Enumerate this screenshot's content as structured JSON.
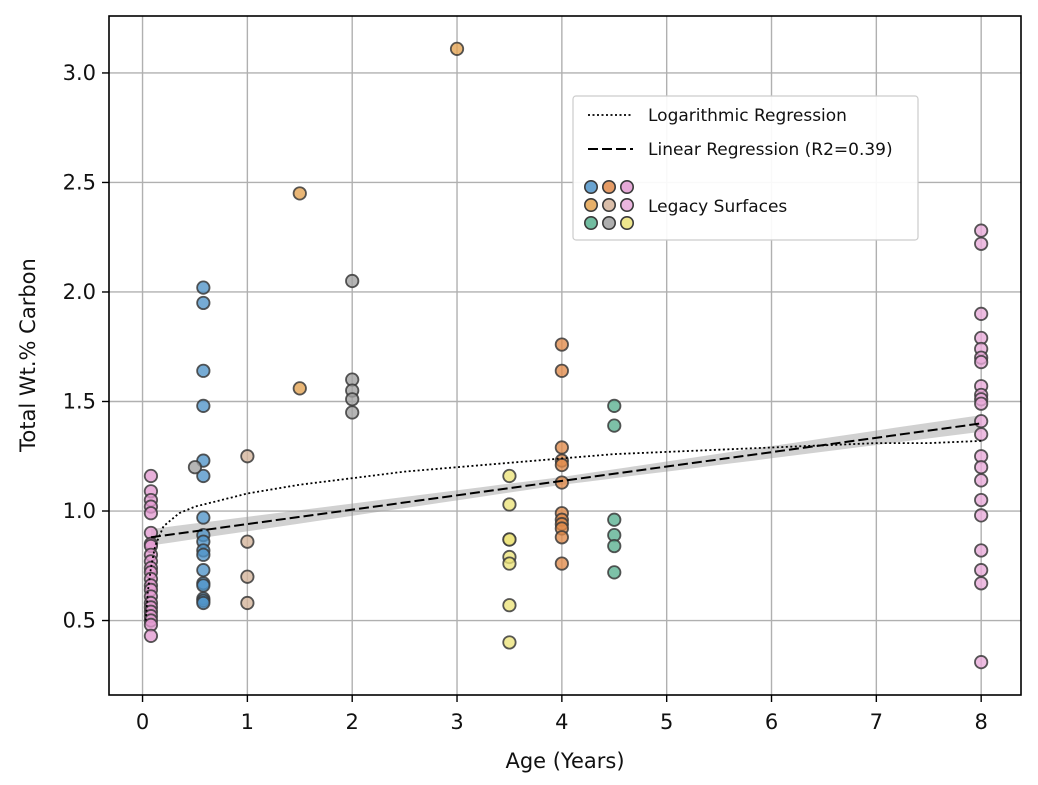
{
  "chart_data": {
    "type": "scatter",
    "title": "",
    "xlabel": "Age (Years)",
    "ylabel": "Total Wt.% Carbon",
    "xlim": [
      -0.32,
      8.38
    ],
    "ylim": [
      0.16,
      3.26
    ],
    "xticks": [
      "0",
      "1",
      "2",
      "3",
      "4",
      "5",
      "6",
      "7",
      "8"
    ],
    "yticks": [
      "0.5",
      "1.0",
      "1.5",
      "2.0",
      "2.5",
      "3.0"
    ],
    "grid": true,
    "legend_position": "top-right",
    "legend": {
      "log_label": "Logarithmic Regression",
      "linear_label": "Linear Regression (R2=0.39)",
      "legacy_label": "Legacy Surfaces",
      "legacy_colors": [
        "#4f93c8",
        "#e08a4a",
        "#e29ad0",
        "#e3a24f",
        "#d4b39a",
        "#e8a9d9",
        "#58b08f",
        "#a0a0a0",
        "#ece37a"
      ]
    },
    "series": [
      {
        "color": "#e29ad0",
        "points": [
          [
            0.08,
            1.16
          ],
          [
            0.08,
            1.09
          ],
          [
            0.08,
            1.05
          ],
          [
            0.08,
            1.02
          ],
          [
            0.08,
            0.99
          ],
          [
            0.08,
            0.9
          ],
          [
            0.08,
            0.85
          ],
          [
            0.08,
            0.84
          ],
          [
            0.08,
            0.8
          ],
          [
            0.08,
            0.77
          ],
          [
            0.08,
            0.74
          ],
          [
            0.08,
            0.72
          ],
          [
            0.08,
            0.69
          ],
          [
            0.08,
            0.66
          ],
          [
            0.08,
            0.64
          ],
          [
            0.08,
            0.61
          ],
          [
            0.08,
            0.58
          ],
          [
            0.08,
            0.56
          ],
          [
            0.08,
            0.54
          ],
          [
            0.08,
            0.52
          ],
          [
            0.08,
            0.5
          ],
          [
            0.08,
            0.48
          ],
          [
            0.08,
            0.43
          ]
        ]
      },
      {
        "color": "#4f93c8",
        "points": [
          [
            0.58,
            2.02
          ],
          [
            0.58,
            1.95
          ],
          [
            0.58,
            1.64
          ],
          [
            0.58,
            1.48
          ],
          [
            0.58,
            1.23
          ],
          [
            0.58,
            1.16
          ],
          [
            0.58,
            0.97
          ],
          [
            0.58,
            0.89
          ],
          [
            0.58,
            0.86
          ],
          [
            0.58,
            0.82
          ],
          [
            0.58,
            0.8
          ],
          [
            0.58,
            0.73
          ],
          [
            0.58,
            0.67
          ],
          [
            0.58,
            0.66
          ],
          [
            0.58,
            0.6
          ],
          [
            0.58,
            0.59
          ],
          [
            0.58,
            0.58
          ]
        ]
      },
      {
        "color": "#a0a0a0",
        "points": [
          [
            0.5,
            1.2
          ],
          [
            2.0,
            2.05
          ],
          [
            2.0,
            1.6
          ],
          [
            2.0,
            1.55
          ],
          [
            2.0,
            1.51
          ],
          [
            2.0,
            1.45
          ]
        ]
      },
      {
        "color": "#d4b39a",
        "points": [
          [
            1.0,
            1.25
          ],
          [
            1.0,
            0.86
          ],
          [
            1.0,
            0.7
          ],
          [
            1.0,
            0.58
          ]
        ]
      },
      {
        "color": "#e3a24f",
        "points": [
          [
            1.5,
            2.45
          ],
          [
            1.5,
            1.56
          ],
          [
            3.0,
            3.11
          ]
        ]
      },
      {
        "color": "#ece37a",
        "points": [
          [
            3.5,
            1.16
          ],
          [
            3.5,
            1.03
          ],
          [
            3.5,
            0.87
          ],
          [
            3.5,
            0.87
          ],
          [
            3.5,
            0.79
          ],
          [
            3.5,
            0.76
          ],
          [
            3.5,
            0.57
          ],
          [
            3.5,
            0.4
          ]
        ]
      },
      {
        "color": "#e08a4a",
        "points": [
          [
            4.0,
            1.76
          ],
          [
            4.0,
            1.64
          ],
          [
            4.0,
            1.29
          ],
          [
            4.0,
            1.23
          ],
          [
            4.0,
            1.21
          ],
          [
            4.0,
            1.13
          ],
          [
            4.0,
            0.99
          ],
          [
            4.0,
            0.96
          ],
          [
            4.0,
            0.94
          ],
          [
            4.0,
            0.92
          ],
          [
            4.0,
            0.88
          ],
          [
            4.0,
            0.76
          ]
        ]
      },
      {
        "color": "#58b08f",
        "points": [
          [
            4.5,
            1.48
          ],
          [
            4.5,
            1.39
          ],
          [
            4.5,
            0.96
          ],
          [
            4.5,
            0.89
          ],
          [
            4.5,
            0.84
          ],
          [
            4.5,
            0.72
          ]
        ]
      },
      {
        "color": "#e8a9d9",
        "points": [
          [
            8.0,
            2.28
          ],
          [
            8.0,
            2.22
          ],
          [
            8.0,
            1.9
          ],
          [
            8.0,
            1.79
          ],
          [
            8.0,
            1.74
          ],
          [
            8.0,
            1.7
          ],
          [
            8.0,
            1.68
          ],
          [
            8.0,
            1.57
          ],
          [
            8.0,
            1.53
          ],
          [
            8.0,
            1.51
          ],
          [
            8.0,
            1.49
          ],
          [
            8.0,
            1.41
          ],
          [
            8.0,
            1.35
          ],
          [
            8.0,
            1.25
          ],
          [
            8.0,
            1.2
          ],
          [
            8.0,
            1.14
          ],
          [
            8.0,
            1.05
          ],
          [
            8.0,
            0.98
          ],
          [
            8.0,
            0.82
          ],
          [
            8.0,
            0.73
          ],
          [
            8.0,
            0.67
          ],
          [
            8.0,
            0.31
          ]
        ]
      }
    ],
    "linear_fit": {
      "x": [
        0.08,
        8.0
      ],
      "y": [
        0.88,
        1.4
      ]
    },
    "log_fit": {
      "x": [
        0.03,
        0.05,
        0.08,
        0.12,
        0.2,
        0.35,
        0.5,
        0.75,
        1.0,
        1.5,
        2.0,
        2.5,
        3.0,
        3.5,
        4.0,
        4.5,
        5.0,
        5.5,
        6.0,
        6.5,
        7.0,
        7.5,
        8.0
      ],
      "y": [
        0.5,
        0.63,
        0.74,
        0.84,
        0.93,
        0.99,
        1.02,
        1.05,
        1.08,
        1.12,
        1.15,
        1.18,
        1.2,
        1.22,
        1.24,
        1.26,
        1.27,
        1.28,
        1.29,
        1.3,
        1.31,
        1.31,
        1.32
      ]
    }
  }
}
